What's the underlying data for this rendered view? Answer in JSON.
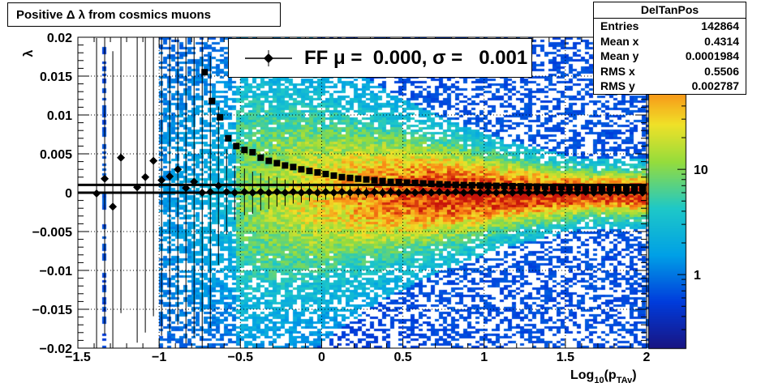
{
  "title": "Positive Δ λ from cosmics muons",
  "stats": {
    "name": "DelTanPos",
    "rows": [
      {
        "label": "Entries",
        "value": "142864"
      },
      {
        "label": "Mean x",
        "value": "0.4314"
      },
      {
        "label": "Mean y",
        "value": "0.0001984"
      },
      {
        "label": "RMS x",
        "value": "0.5506"
      },
      {
        "label": "RMS y",
        "value": "0.002787"
      }
    ]
  },
  "legend": {
    "text": "FF μ =  0.000, σ =   0.001"
  },
  "chart_data": {
    "type": "heatmap",
    "title": "Positive Δ λ from cosmics muons",
    "xlabel_main": "Log",
    "xlabel_sub1": "10",
    "xlabel_mid": "(p",
    "xlabel_sub2": "TAv",
    "xlabel_end": ")",
    "ylabel": "λ",
    "xlim": [
      -1.5,
      2
    ],
    "ylim": [
      -0.02,
      0.02
    ],
    "x_ticks": [
      -1.5,
      -1,
      -0.5,
      0,
      0.5,
      1,
      1.5,
      2
    ],
    "x_tick_labels": [
      "−1.5",
      "−1",
      "−0.5",
      "0",
      "0.5",
      "1",
      "1.5",
      "2"
    ],
    "y_ticks": [
      -0.02,
      -0.015,
      -0.01,
      -0.005,
      0,
      0.005,
      0.01,
      0.015,
      0.02
    ],
    "y_tick_labels": [
      "−0.02",
      "−0.015",
      "−0.01",
      "−0.005",
      "0",
      "0.005",
      "0.01",
      "0.015",
      "0.02"
    ],
    "grid": true,
    "colorbar": {
      "scale": "log",
      "tick_values": [
        1,
        10
      ],
      "tick_labels": [
        "1",
        "10"
      ]
    },
    "sigma_series": {
      "name": "sigma",
      "marker": "square",
      "x": [
        -0.72,
        -0.675,
        -0.625,
        -0.575,
        -0.525,
        -0.475,
        -0.425,
        -0.375,
        -0.325,
        -0.275,
        -0.225,
        -0.175,
        -0.125,
        -0.075,
        -0.025,
        0.025,
        0.075,
        0.125,
        0.175,
        0.225,
        0.275,
        0.325,
        0.375,
        0.425,
        0.475,
        0.525,
        0.575,
        0.625,
        0.675,
        0.725,
        0.775,
        0.825,
        0.875,
        0.925,
        0.975,
        1.025,
        1.075,
        1.125,
        1.175,
        1.225,
        1.275,
        1.325,
        1.375,
        1.425,
        1.475,
        1.525,
        1.575,
        1.625,
        1.675,
        1.725,
        1.775,
        1.825,
        1.875,
        1.925,
        1.975
      ],
      "y": [
        0.0155,
        0.0118,
        0.0097,
        0.007,
        0.006,
        0.0055,
        0.0052,
        0.0045,
        0.0041,
        0.0038,
        0.0035,
        0.0033,
        0.003,
        0.0028,
        0.0026,
        0.0024,
        0.0022,
        0.002,
        0.0019,
        0.0018,
        0.0017,
        0.0016,
        0.0015,
        0.0014,
        0.00135,
        0.0013,
        0.00125,
        0.0012,
        0.00115,
        0.0011,
        0.00105,
        0.001,
        0.00098,
        0.00095,
        0.00092,
        0.0009,
        0.00088,
        0.00086,
        0.00084,
        0.00082,
        0.0008,
        0.00078,
        0.00076,
        0.00074,
        0.00072,
        0.0007,
        0.00068,
        0.00066,
        0.00065,
        0.00064,
        0.00063,
        0.00062,
        0.00061,
        0.0006,
        0.0006
      ]
    },
    "mean_series": {
      "name": "mean",
      "marker": "diamond",
      "x": [
        -1.385,
        -1.335,
        -1.285,
        -1.235,
        -1.135,
        -1.085,
        -1.035,
        -0.985,
        -0.935,
        -0.885,
        -0.835,
        -0.785,
        -0.735,
        -0.685,
        -0.635,
        -0.585,
        -0.535,
        -0.475,
        -0.425,
        -0.375,
        -0.325,
        -0.275,
        -0.225,
        -0.175,
        -0.125,
        -0.075,
        -0.025,
        0.025,
        0.075,
        0.125,
        0.175,
        0.225,
        0.275,
        0.325,
        0.375,
        0.425,
        0.475,
        0.525,
        0.575,
        0.625,
        0.675,
        0.725,
        0.775,
        0.825,
        0.875,
        0.925,
        0.975,
        1.025,
        1.075,
        1.125,
        1.175,
        1.225,
        1.275,
        1.325,
        1.375,
        1.425,
        1.475,
        1.525,
        1.575,
        1.625,
        1.675,
        1.725,
        1.775,
        1.825,
        1.875,
        1.925,
        1.975
      ],
      "y": [
        -0.0001,
        0.0018,
        -0.0018,
        0.0045,
        0.0007,
        0.002,
        0.0041,
        0.0016,
        0.0021,
        0.003,
        0.0006,
        0.0014,
        0.0,
        0.0001,
        0.0009,
        0.0001,
        0.0,
        0.0001,
        0.0,
        0.0001,
        0.0,
        0.0001,
        0.0,
        0.0001,
        0.0,
        0.0001,
        0.0,
        0.0001,
        0.0,
        0.0001,
        0.0,
        0.0001,
        0.0,
        0.0001,
        0.0,
        0.0001,
        0.0,
        0.0001,
        0.0,
        0.0001,
        0.0,
        0.0001,
        0.0,
        0.0001,
        0.0,
        0.0001,
        0.0,
        0.0001,
        0.0,
        0.0001,
        0.0,
        0.0001,
        0.0,
        0.0001,
        0.0,
        0.0001,
        0.0,
        0.0001,
        0.0,
        0.0001,
        0.0,
        0.0001,
        0.0,
        0.0001,
        0.0,
        0.0001,
        0.0
      ],
      "yerr": [
        0.02,
        0.02,
        0.02,
        0.02,
        0.02,
        0.02,
        0.02,
        0.02,
        0.02,
        0.02,
        0.02,
        0.02,
        0.02,
        0.0175,
        0.0102,
        0.0055,
        0.0035,
        0.003,
        0.0027,
        0.0024,
        0.0021,
        0.0019,
        0.0017,
        0.0015,
        0.0013,
        0.0012,
        0.0011,
        0.001,
        0.0009,
        0.0008,
        0.0008,
        0.0007,
        0.0007,
        0.0006,
        0.0006,
        0.0006,
        0.0005,
        0.0005,
        0.0005,
        0.0005,
        0.0004,
        0.0004,
        0.0004,
        0.0004,
        0.0004,
        0.0004,
        0.0004,
        0.0004,
        0.0004,
        0.0004,
        0.0004,
        0.0004,
        0.0004,
        0.0004,
        0.0004,
        0.0004,
        0.0004,
        0.0004,
        0.0004,
        0.0004,
        0.0004,
        0.0004,
        0.0004,
        0.0004,
        0.0004,
        0.0004,
        0.0004
      ]
    },
    "fit_lines": [
      0.001,
      0.0
    ]
  }
}
